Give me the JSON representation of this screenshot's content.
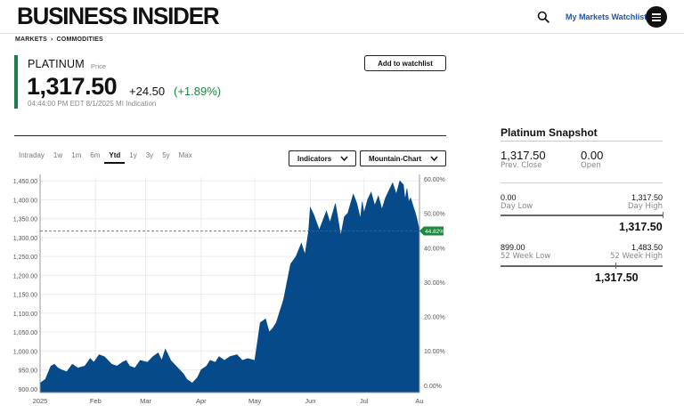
{
  "header": {
    "logo": "BUSINESS INSIDER",
    "watchlist_link": "My Markets Watchlist"
  },
  "breadcrumb": {
    "items": [
      "MARKETS",
      "COMMODITIES"
    ],
    "separator": "›"
  },
  "quote": {
    "name": "PLATINUM",
    "sub": "Price",
    "price": "1,317.50",
    "change": "+24.50",
    "change_pct": "(+1.89%)",
    "timestamp": "04:44:00 PM EDT 8/1/2025  MI Indication",
    "add_watchlist": "Add to watchlist",
    "accent_color": "#1a7f4b",
    "positive_color": "#1a8a3c"
  },
  "chart_controls": {
    "ranges": [
      "Intraday",
      "1w",
      "1m",
      "6m",
      "Ytd",
      "1y",
      "3y",
      "5y",
      "Max"
    ],
    "active_range": "Ytd",
    "indicators_label": "Indicators",
    "chart_type_label": "Mountain-Chart"
  },
  "chart_data": {
    "type": "area",
    "fill_color": "#064a8a",
    "current_pct_label": "44.82%",
    "ylim": [
      890,
      1460
    ],
    "yticks_left": [
      "1,450.00",
      "1,400.00",
      "1,350.00",
      "1,300.00",
      "1,250.00",
      "1,200.00",
      "1,150.00",
      "1,100.00",
      "1,050.00",
      "1,000.00",
      "950.00",
      "900.00"
    ],
    "yticks_left_values": [
      1450,
      1400,
      1350,
      1300,
      1250,
      1200,
      1150,
      1100,
      1050,
      1000,
      950,
      900
    ],
    "yticks_right": [
      "60.00%",
      "50.00%",
      "40.00%",
      "30.00%",
      "20.00%",
      "10.00%",
      "0.00%"
    ],
    "yticks_right_values": [
      1455.1,
      1364.1,
      1273.2,
      1182.2,
      1091.2,
      1000.3,
      909.3
    ],
    "xticks": [
      "2025",
      "Feb",
      "Mar",
      "Apr",
      "May",
      "Jun",
      "Jul",
      "Au"
    ],
    "xtick_positions": [
      0,
      31,
      59,
      90,
      120,
      151,
      181,
      212
    ],
    "reference_value": 1317.5,
    "x_days": [
      0,
      3,
      6,
      8,
      10,
      12,
      15,
      18,
      21,
      25,
      28,
      30,
      33,
      36,
      40,
      43,
      46,
      48,
      50,
      53,
      56,
      60,
      63,
      66,
      68,
      70,
      73,
      76,
      80,
      82,
      85,
      88,
      90,
      93,
      95,
      98,
      100,
      103,
      106,
      110,
      113,
      116,
      120,
      123,
      126,
      128,
      130,
      132,
      136,
      140,
      143,
      146,
      148,
      150,
      151,
      153,
      156,
      158,
      160,
      162,
      165,
      168,
      170,
      172,
      175,
      177,
      179,
      180,
      181,
      183,
      185,
      187,
      189,
      191,
      193,
      195,
      197,
      199,
      201,
      203,
      204,
      205,
      206,
      207,
      208,
      210,
      211,
      212
    ],
    "values": [
      915,
      925,
      960,
      965,
      955,
      950,
      945,
      965,
      955,
      960,
      980,
      970,
      990,
      985,
      965,
      960,
      970,
      975,
      960,
      955,
      975,
      970,
      985,
      995,
      975,
      1005,
      975,
      960,
      940,
      925,
      915,
      930,
      950,
      960,
      975,
      970,
      985,
      975,
      985,
      990,
      975,
      980,
      975,
      1075,
      1085,
      1050,
      1060,
      1075,
      1135,
      1230,
      1250,
      1285,
      1255,
      1315,
      1380,
      1360,
      1320,
      1345,
      1370,
      1340,
      1390,
      1305,
      1355,
      1365,
      1415,
      1390,
      1350,
      1395,
      1365,
      1400,
      1420,
      1385,
      1410,
      1375,
      1405,
      1425,
      1445,
      1415,
      1450,
      1440,
      1400,
      1430,
      1395,
      1405,
      1390,
      1360,
      1340,
      1317.5
    ]
  },
  "snapshot": {
    "title": "Platinum Snapshot",
    "prev_close": "1,317.50",
    "prev_close_label": "Prev. Close",
    "open": "0.00",
    "open_label": "Open",
    "day_low": "0.00",
    "day_low_label": "Day Low",
    "day_high": "1,317.50",
    "day_high_label": "Day High",
    "day_current": "1,317.50",
    "wk_low": "899.00",
    "wk_low_label": "52 Week Low",
    "wk_high": "1,483.50",
    "wk_high_label": "52 Week High",
    "wk_current": "1,317.50",
    "day_marker_fraction": 1.0,
    "wk_marker_fraction": 0.714
  }
}
